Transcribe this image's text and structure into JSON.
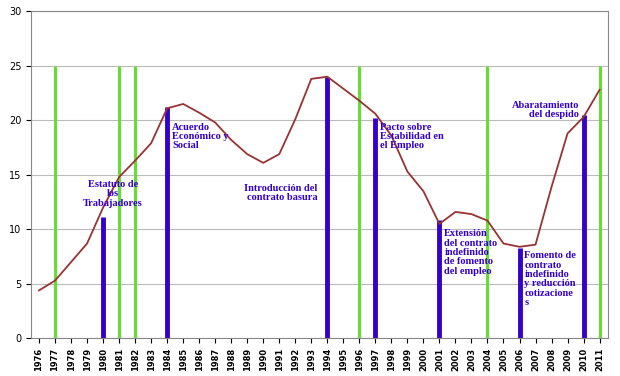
{
  "chart_data": {
    "type": "line",
    "x": [
      1976,
      1977,
      1978,
      1979,
      1980,
      1981,
      1982,
      1983,
      1984,
      1985,
      1986,
      1987,
      1988,
      1989,
      1990,
      1991,
      1992,
      1993,
      1994,
      1995,
      1996,
      1997,
      1998,
      1999,
      2000,
      2001,
      2002,
      2003,
      2004,
      2005,
      2006,
      2007,
      2008,
      2009,
      2010,
      2011
    ],
    "values": [
      4.4,
      5.3,
      7.0,
      8.7,
      12.0,
      14.8,
      16.3,
      17.9,
      21.1,
      21.5,
      20.7,
      19.8,
      18.2,
      16.9,
      16.1,
      16.9,
      20.1,
      23.8,
      24.0,
      22.9,
      21.8,
      20.6,
      18.6,
      15.3,
      13.5,
      10.5,
      11.6,
      11.4,
      10.8,
      8.7,
      8.4,
      8.6,
      13.9,
      18.8,
      20.3,
      22.8
    ],
    "color": "#993333",
    "xlim": [
      1975.5,
      2011.5
    ],
    "xticks": [
      1976,
      1977,
      1978,
      1979,
      1980,
      1981,
      1982,
      1983,
      1984,
      1985,
      1986,
      1987,
      1988,
      1989,
      1990,
      1991,
      1992,
      1993,
      1994,
      1995,
      1996,
      1997,
      1998,
      1999,
      2000,
      2001,
      2002,
      2003,
      2004,
      2005,
      2006,
      2007,
      2008,
      2009,
      2010,
      2011
    ],
    "ylim": [
      0,
      30
    ],
    "yticks": [
      0,
      5,
      10,
      15,
      20,
      25,
      30
    ],
    "grid": true,
    "elections": {
      "x": [
        1977,
        1981,
        1982,
        1996,
        2004,
        2011
      ],
      "value": 25,
      "color": "#66dd33"
    },
    "reforms": {
      "color": "#3300cc",
      "items": [
        {
          "x": 1980,
          "value": 11.1,
          "label": "Estatuto de los Trabajadores"
        },
        {
          "x": 1984,
          "value": 21.2,
          "label": "Acuerdo Económico y Social"
        },
        {
          "x": 1994,
          "value": 24.0,
          "label": "Introducción del contrato basura"
        },
        {
          "x": 1997,
          "value": 20.2,
          "label": "Pacto sobre Estabilidad en el Empleo"
        },
        {
          "x": 2001,
          "value": 10.9,
          "label": "Extensión del contrato indefinido de fomento del empleo"
        },
        {
          "x": 2006,
          "value": 8.3,
          "label": "Fomento de contrato indefinido y reducción cotizaciones"
        },
        {
          "x": 2010,
          "value": 20.5,
          "label": "Abaratamiento del despido"
        }
      ]
    }
  }
}
